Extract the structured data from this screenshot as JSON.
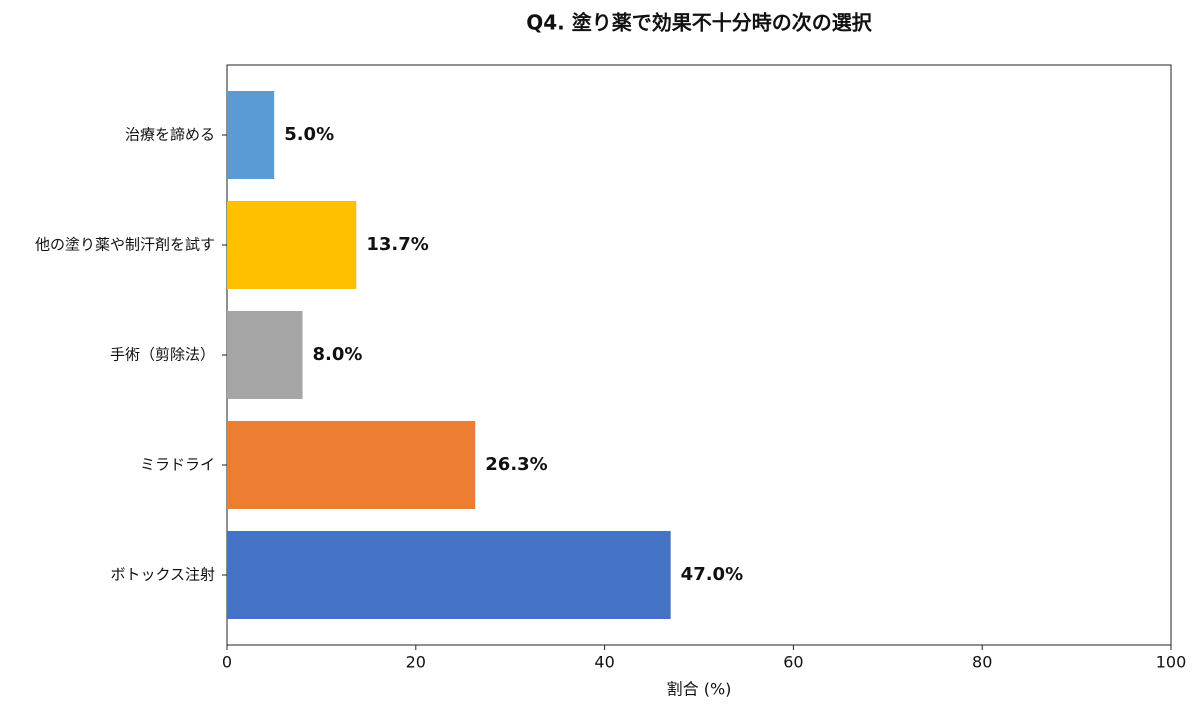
{
  "chart_data": {
    "type": "bar",
    "orientation": "horizontal",
    "title": "Q4. 塗り薬で効果不十分時の次の選択",
    "xlabel": "割合 (%)",
    "categories": [
      "治療を諦める",
      "他の塗り薬や制汗剤を試す",
      "手術（剪除法）",
      "ミラドライ",
      "ボトックス注射"
    ],
    "values": [
      5.0,
      13.7,
      8.0,
      26.3,
      47.0
    ],
    "value_labels": [
      "5.0%",
      "13.7%",
      "8.0%",
      "26.3%",
      "47.0%"
    ],
    "colors": [
      "#5b9bd5",
      "#ffc000",
      "#a5a5a5",
      "#ed7d31",
      "#4472c4"
    ],
    "xlim": [
      0,
      100
    ],
    "xticks": [
      0,
      20,
      40,
      60,
      80,
      100
    ],
    "grid": false
  }
}
